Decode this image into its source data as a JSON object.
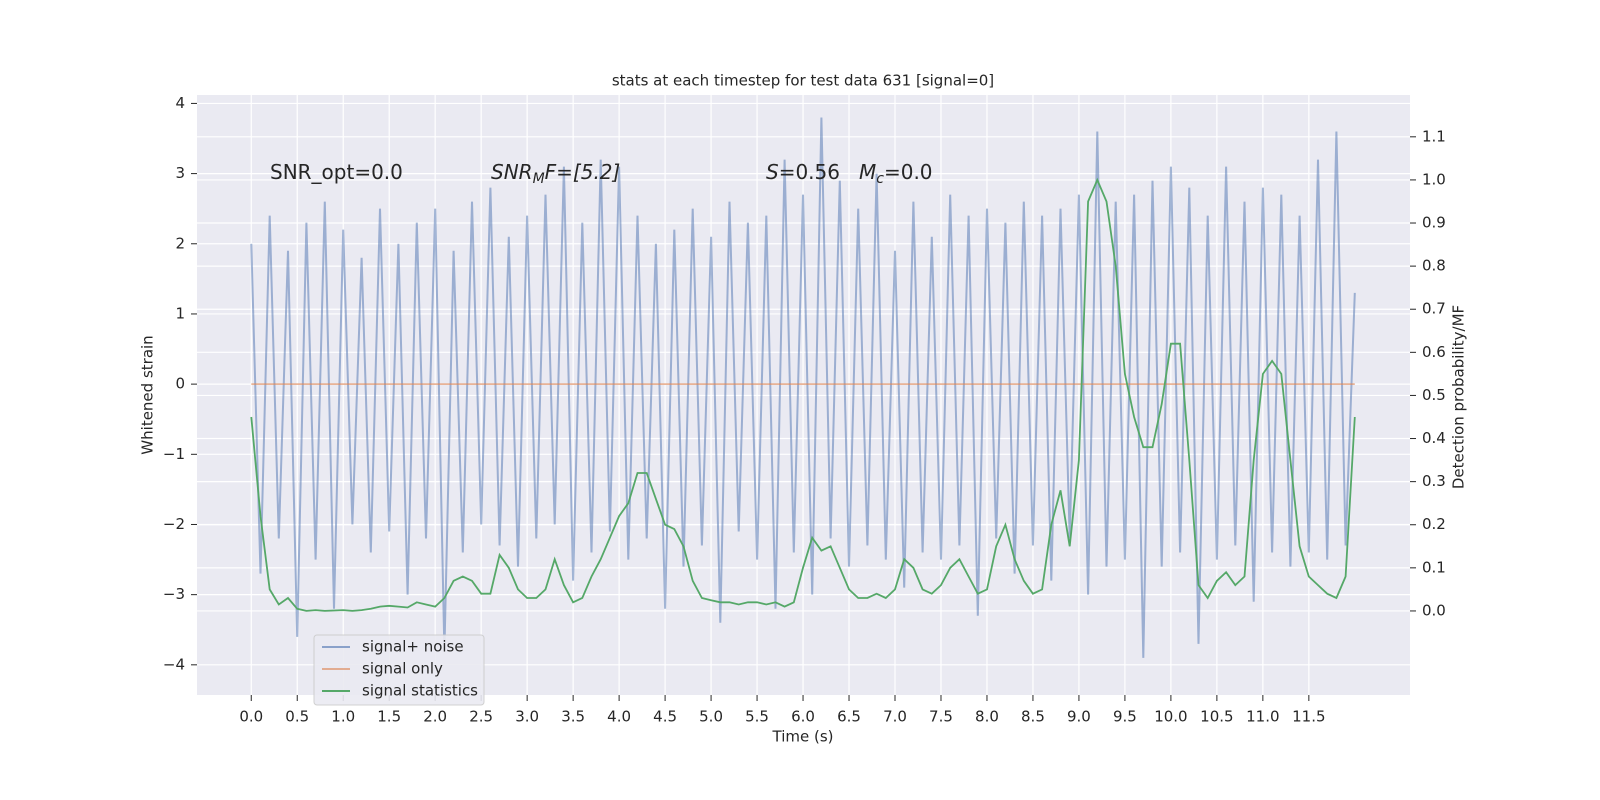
{
  "chart_data": {
    "type": "line",
    "title": "stats at each timestep for test data 631 [signal=0]",
    "xlabel": "Time (s)",
    "ylabel": "Whitened strain",
    "y2label": "Detection probability/MF",
    "annotations": [
      {
        "main": "SNR_opt=0.0"
      },
      {
        "main": "SNR",
        "sub": "M",
        "tail": "F=[5.2]"
      },
      {
        "main": "S",
        "tail": "=0.56"
      },
      {
        "main": "M",
        "sub": "c",
        "tail": "=0.0"
      }
    ],
    "x": [
      0,
      0.1,
      0.2,
      0.3,
      0.4,
      0.5,
      0.6,
      0.7,
      0.8,
      0.9,
      1,
      1.1,
      1.2,
      1.3,
      1.4,
      1.5,
      1.6,
      1.7,
      1.8,
      1.9,
      2,
      2.1,
      2.2,
      2.3,
      2.4,
      2.5,
      2.6,
      2.7,
      2.8,
      2.9,
      3,
      3.1,
      3.2,
      3.3,
      3.4,
      3.5,
      3.6,
      3.7,
      3.8,
      3.9,
      4,
      4.1,
      4.2,
      4.3,
      4.4,
      4.5,
      4.6,
      4.7,
      4.8,
      4.9,
      5,
      5.1,
      5.2,
      5.3,
      5.4,
      5.5,
      5.6,
      5.7,
      5.8,
      5.9,
      6,
      6.1,
      6.2,
      6.3,
      6.4,
      6.5,
      6.6,
      6.7,
      6.8,
      6.9,
      7,
      7.1,
      7.2,
      7.3,
      7.4,
      7.5,
      7.6,
      7.7,
      7.8,
      7.9,
      8,
      8.1,
      8.2,
      8.3,
      8.4,
      8.5,
      8.6,
      8.7,
      8.8,
      8.9,
      9,
      9.1,
      9.2,
      9.3,
      9.4,
      9.5,
      9.6,
      9.7,
      9.8,
      9.9,
      10,
      10.1,
      10.2,
      10.3,
      10.4,
      10.5,
      10.6,
      10.7,
      10.8,
      10.9,
      11,
      11.1,
      11.2,
      11.3,
      11.4,
      11.5,
      11.6,
      11.7,
      11.8,
      11.9,
      12
    ],
    "series": [
      {
        "name": "signal+ noise",
        "color": "#4c72b0",
        "values": [
          2.0,
          -2.7,
          2.4,
          -2.2,
          1.9,
          -3.6,
          2.3,
          -2.5,
          2.6,
          -3.2,
          2.2,
          -2.0,
          1.8,
          -2.4,
          2.5,
          -2.1,
          2.0,
          -3.0,
          2.3,
          -2.2,
          2.5,
          -3.8,
          1.9,
          -2.4,
          2.6,
          -2.0,
          2.8,
          -2.3,
          2.1,
          -2.6,
          2.4,
          -2.2,
          2.7,
          -2.0,
          3.1,
          -2.8,
          2.3,
          -2.4,
          3.2,
          -2.1,
          3.1,
          -2.5,
          2.4,
          -2.2,
          2.0,
          -3.2,
          2.2,
          -2.6,
          2.5,
          -2.3,
          2.1,
          -3.4,
          2.6,
          -2.1,
          2.3,
          -2.5,
          2.4,
          -3.2,
          3.2,
          -2.4,
          2.7,
          -3.0,
          3.8,
          -2.2,
          2.9,
          -2.6,
          2.5,
          -2.3,
          3.0,
          -2.5,
          1.9,
          -2.9,
          2.6,
          -2.4,
          2.1,
          -2.5,
          2.7,
          -2.3,
          2.4,
          -3.3,
          2.5,
          -2.2,
          2.3,
          -2.7,
          2.6,
          -2.3,
          2.4,
          -2.8,
          2.5,
          -2.2,
          2.7,
          -3.0,
          3.6,
          -2.6,
          2.6,
          -2.5,
          2.7,
          -3.9,
          2.9,
          -2.6,
          3.1,
          -2.4,
          2.8,
          -3.7,
          2.4,
          -2.5,
          3.1,
          -2.3,
          2.6,
          -3.1,
          2.8,
          -2.4,
          2.7,
          -2.6,
          2.4,
          -2.4,
          3.2,
          -2.5,
          3.6,
          -2.3,
          1.3
        ]
      },
      {
        "name": "signal only",
        "color": "#dd8452",
        "values": [
          0,
          0,
          0,
          0,
          0,
          0,
          0,
          0,
          0,
          0,
          0,
          0,
          0,
          0,
          0,
          0,
          0,
          0,
          0,
          0,
          0,
          0,
          0,
          0,
          0,
          0,
          0,
          0,
          0,
          0,
          0,
          0,
          0,
          0,
          0,
          0,
          0,
          0,
          0,
          0,
          0,
          0,
          0,
          0,
          0,
          0,
          0,
          0,
          0,
          0,
          0,
          0,
          0,
          0,
          0,
          0,
          0,
          0,
          0,
          0,
          0,
          0,
          0,
          0,
          0,
          0,
          0,
          0,
          0,
          0,
          0,
          0,
          0,
          0,
          0,
          0,
          0,
          0,
          0,
          0,
          0,
          0,
          0,
          0,
          0,
          0,
          0,
          0,
          0,
          0,
          0,
          0,
          0,
          0,
          0,
          0,
          0,
          0,
          0,
          0,
          0,
          0,
          0,
          0,
          0,
          0,
          0,
          0,
          0,
          0,
          0,
          0,
          0,
          0,
          0,
          0,
          0,
          0,
          0,
          0,
          0
        ]
      },
      {
        "name": "signal statistics",
        "color": "#55a868",
        "axis": "y2",
        "values": [
          0.45,
          0.22,
          0.05,
          0.015,
          0.03,
          0.005,
          0,
          0.002,
          0,
          0.001,
          0.002,
          0,
          0.002,
          0.005,
          0.01,
          0.012,
          0.01,
          0.008,
          0.02,
          0.015,
          0.01,
          0.03,
          0.07,
          0.08,
          0.07,
          0.04,
          0.04,
          0.13,
          0.1,
          0.05,
          0.03,
          0.03,
          0.05,
          0.12,
          0.06,
          0.02,
          0.03,
          0.08,
          0.12,
          0.17,
          0.22,
          0.25,
          0.32,
          0.32,
          0.26,
          0.2,
          0.19,
          0.15,
          0.07,
          0.03,
          0.025,
          0.02,
          0.02,
          0.015,
          0.02,
          0.02,
          0.015,
          0.02,
          0.01,
          0.02,
          0.1,
          0.17,
          0.14,
          0.15,
          0.1,
          0.05,
          0.03,
          0.03,
          0.04,
          0.03,
          0.05,
          0.12,
          0.1,
          0.05,
          0.04,
          0.06,
          0.1,
          0.12,
          0.08,
          0.04,
          0.05,
          0.15,
          0.2,
          0.12,
          0.07,
          0.04,
          0.05,
          0.2,
          0.28,
          0.15,
          0.35,
          0.95,
          1.0,
          0.95,
          0.8,
          0.55,
          0.45,
          0.38,
          0.38,
          0.48,
          0.62,
          0.62,
          0.35,
          0.06,
          0.03,
          0.07,
          0.09,
          0.06,
          0.08,
          0.35,
          0.55,
          0.58,
          0.55,
          0.35,
          0.15,
          0.08,
          0.06,
          0.04,
          0.03,
          0.08,
          0.45
        ]
      }
    ],
    "xlim": [
      -0.59,
      12.6
    ],
    "ylim": [
      -4.43,
      4.12
    ],
    "y2lim": [
      -0.195,
      1.197
    ],
    "xticks": [
      {
        "value": 0,
        "label": "0.0"
      },
      0.5,
      {
        "value": 1,
        "label": "1.0"
      },
      1.5,
      {
        "value": 2,
        "label": "2.0"
      },
      2.5,
      {
        "value": 3,
        "label": "3.0"
      },
      3.5,
      {
        "value": 4,
        "label": "4.0"
      },
      4.5,
      {
        "value": 5,
        "label": "5.0"
      },
      5.5,
      {
        "value": 6,
        "label": "6.0"
      },
      6.5,
      {
        "value": 7,
        "label": "7.0"
      },
      7.5,
      {
        "value": 8,
        "label": "8.0"
      },
      8.5,
      {
        "value": 9,
        "label": "9.0"
      },
      9.5,
      {
        "value": 10,
        "label": "10.0"
      },
      10.5,
      {
        "value": 11,
        "label": "11.0"
      },
      11.5
    ],
    "yticks": [
      {
        "value": -4,
        "label": "−4"
      },
      {
        "value": -3,
        "label": "−3"
      },
      {
        "value": -2,
        "label": "−2"
      },
      {
        "value": -1,
        "label": "−1"
      },
      0,
      1,
      2,
      3,
      4
    ],
    "y2ticks": [
      {
        "value": 0,
        "label": "0.0"
      },
      0.1,
      0.2,
      0.3,
      0.4,
      0.5,
      0.6,
      0.7,
      0.8,
      0.9,
      {
        "value": 1,
        "label": "1.0"
      },
      1.1
    ],
    "grid": true,
    "legend": "lower left"
  }
}
